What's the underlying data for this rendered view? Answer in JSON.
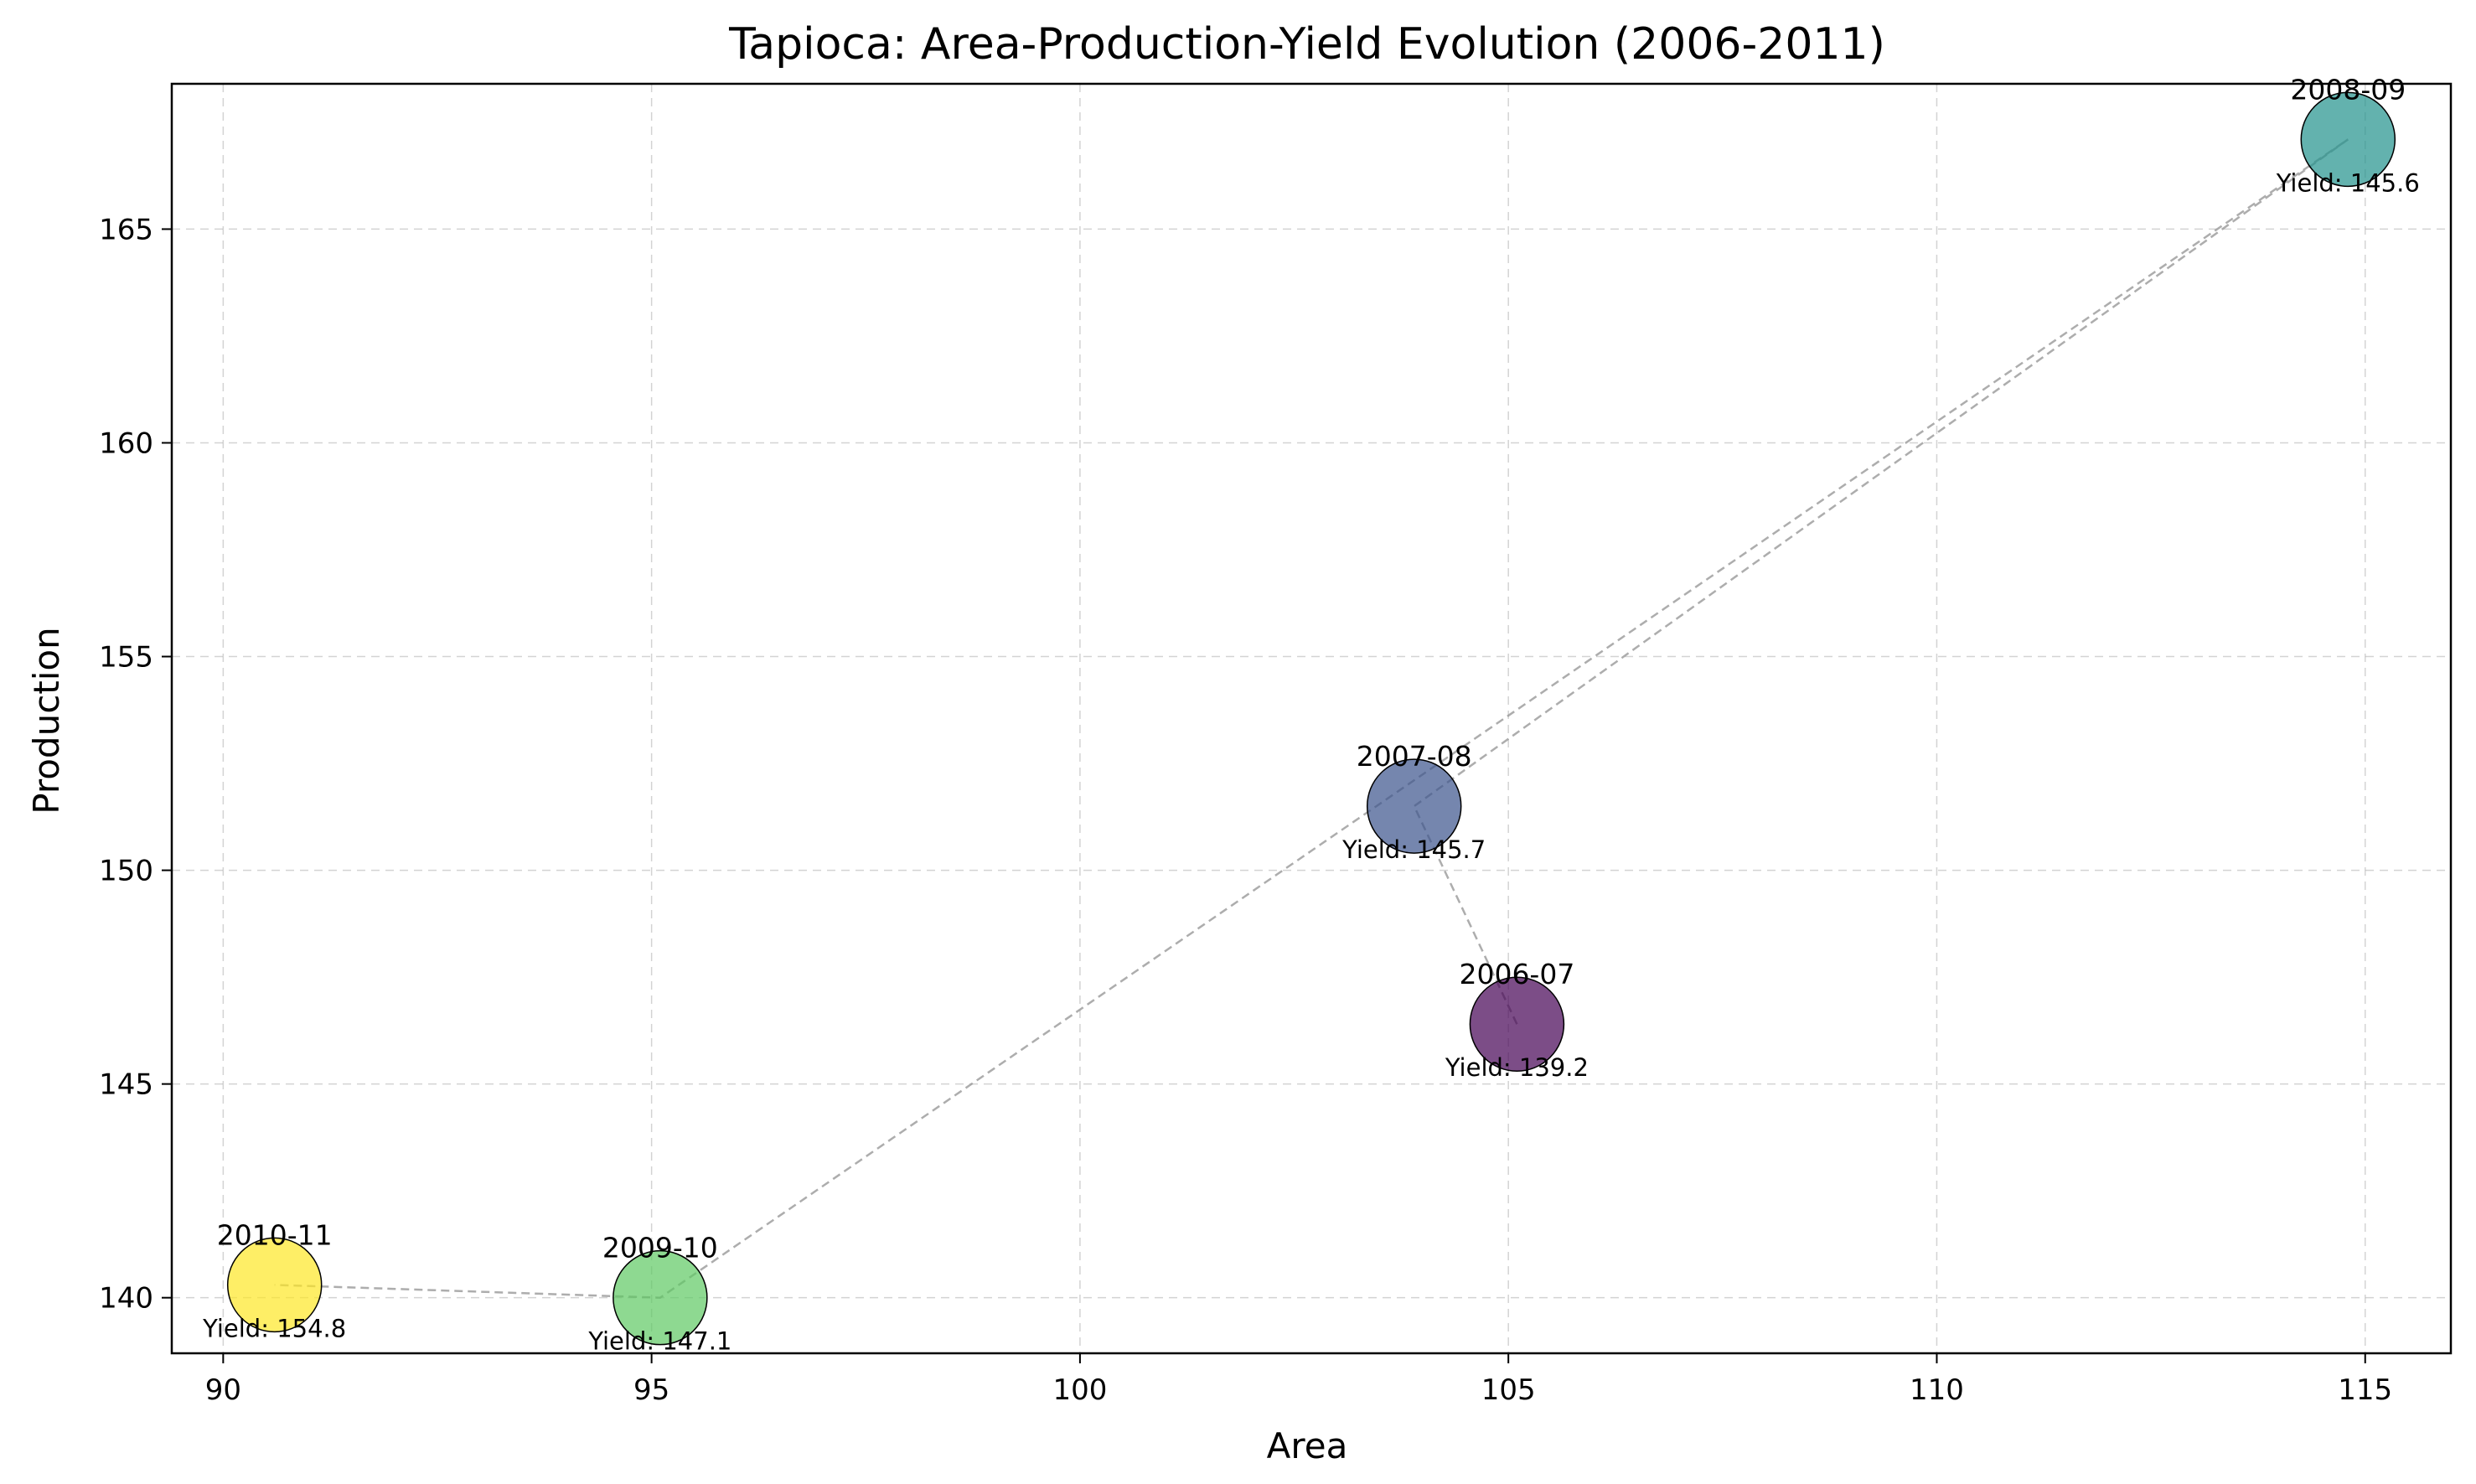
{
  "chart_data": {
    "type": "scatter",
    "title": "Tapioca: Area-Production-Yield Evolution (2006-2011)",
    "xlabel": "Area",
    "ylabel": "Production",
    "xlim": [
      89.4,
      116.0
    ],
    "ylim": [
      138.7,
      168.4
    ],
    "xticks": [
      90,
      95,
      100,
      105,
      110,
      115
    ],
    "yticks": [
      140,
      145,
      150,
      155,
      160,
      165
    ],
    "grid": true,
    "connector": "dashed line in chronological order",
    "points": [
      {
        "label": "2006-07",
        "x": 105.1,
        "y": 146.4,
        "yield_text": "Yield: 139.2",
        "yield": 139.2,
        "color": "#440154"
      },
      {
        "label": "2007-08",
        "x": 103.9,
        "y": 151.5,
        "yield_text": "Yield: 145.7",
        "yield": 145.7,
        "color": "#3b528b"
      },
      {
        "label": "2008-09",
        "x": 114.8,
        "y": 167.1,
        "yield_text": "Yield: 145.6",
        "yield": 145.6,
        "color": "#21918c"
      },
      {
        "label": "2009-10",
        "x": 95.1,
        "y": 140.0,
        "yield_text": "Yield: 147.1",
        "yield": 147.1,
        "color": "#5ec962"
      },
      {
        "label": "2010-11",
        "x": 90.6,
        "y": 140.3,
        "yield_text": "Yield: 154.8",
        "yield": 154.8,
        "color": "#fde725"
      }
    ]
  }
}
